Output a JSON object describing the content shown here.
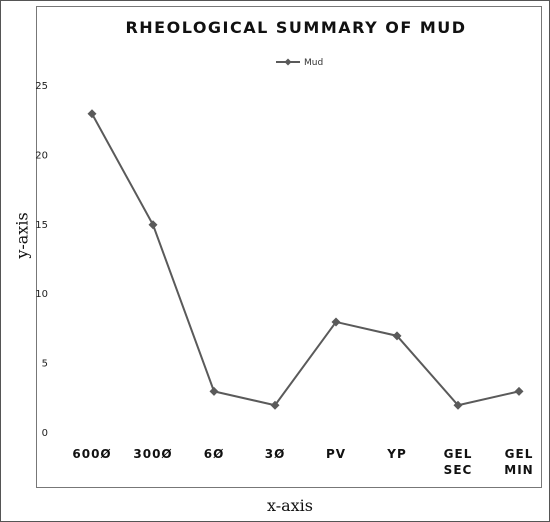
{
  "chart_data": {
    "type": "line",
    "title": "RHEOLOGICAL SUMMARY OF MUD",
    "xlabel": "x-axis",
    "ylabel": "y-axis",
    "categories": [
      [
        "600Ø"
      ],
      [
        "300Ø"
      ],
      [
        "6Ø"
      ],
      [
        "3Ø"
      ],
      [
        "PV"
      ],
      [
        "YP"
      ],
      [
        "GEL",
        "SEC"
      ],
      [
        "GEL",
        "MIN"
      ]
    ],
    "series": [
      {
        "name": "Mud",
        "values": [
          23,
          15,
          3,
          2,
          8,
          7,
          2,
          3
        ],
        "color": "#5a5a5a"
      }
    ],
    "ylim": [
      0,
      25
    ],
    "yticks": [
      0,
      5,
      10,
      15,
      20,
      25
    ],
    "grid": false,
    "legend": "top-center"
  }
}
